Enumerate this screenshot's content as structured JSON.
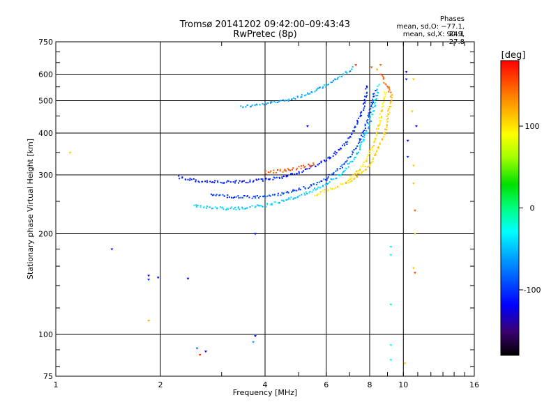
{
  "chart_data": {
    "type": "scatter",
    "title": "Tromsø 20141202 09:42:00–09:43:43",
    "subtitle": "RwPretec (8p)",
    "xlabel": "Frequency [MHz]",
    "ylabel": "Stationary phase Virtual Height [km]",
    "xscale": "log",
    "yscale": "log",
    "xlim": [
      1,
      16
    ],
    "ylim": [
      75,
      750
    ],
    "x_ticks": [
      "1",
      "2",
      "4",
      "6",
      "8",
      "10",
      "16"
    ],
    "x_tick_values": [
      1,
      2,
      4,
      6,
      8,
      10,
      16
    ],
    "y_ticks": [
      "75",
      "100",
      "200",
      "300",
      "400",
      "500",
      "600",
      "750"
    ],
    "y_tick_values": [
      75,
      100,
      200,
      300,
      400,
      500,
      600,
      750
    ],
    "grid": true,
    "color_legend": {
      "label": "[deg]",
      "tick_labels": [
        "100",
        "0",
        "-100"
      ],
      "tick_values": [
        100,
        0,
        -100
      ],
      "range": [
        -180,
        180
      ]
    },
    "stats": {
      "heading": "Phases",
      "line_o": "mean, sd,O: −77.1, 24.1",
      "line_x": "mean, sd,X:  90.9, 27.8"
    },
    "traces": [
      {
        "x": [
          3.4,
          3.8,
          4.3,
          4.9,
          5.5,
          6.0,
          6.5,
          6.9,
          7.2
        ],
        "y": [
          480,
          485,
          495,
          510,
          530,
          555,
          585,
          610,
          630
        ],
        "phase": -60
      },
      {
        "x": [
          2.25,
          2.6,
          3.0,
          3.5,
          4.0,
          4.5,
          5.0,
          5.6,
          6.2,
          6.8,
          7.3,
          7.7,
          7.9
        ],
        "y": [
          295,
          287,
          285,
          286,
          290,
          296,
          305,
          320,
          340,
          370,
          420,
          480,
          560
        ],
        "phase": -110
      },
      {
        "x": [
          2.8,
          3.2,
          3.7,
          4.2,
          4.8,
          5.4,
          6.0,
          6.6,
          7.1,
          7.6,
          8.0,
          8.3
        ],
        "y": [
          262,
          258,
          257,
          260,
          268,
          278,
          292,
          315,
          345,
          390,
          460,
          540
        ],
        "phase": -95
      },
      {
        "x": [
          2.5,
          2.9,
          3.4,
          4.0,
          4.6,
          5.3,
          6.0,
          6.7,
          7.3,
          7.8,
          8.2,
          8.5
        ],
        "y": [
          242,
          238,
          238,
          243,
          252,
          265,
          282,
          305,
          340,
          395,
          470,
          560
        ],
        "phase": -45
      },
      {
        "x": [
          5.6,
          6.2,
          6.8,
          7.3,
          7.8,
          8.2,
          8.5,
          8.7,
          8.9
        ],
        "y": [
          262,
          272,
          285,
          302,
          328,
          370,
          420,
          480,
          540
        ],
        "phase": 100
      },
      {
        "x": [
          6.8,
          7.4,
          8.0,
          8.5,
          8.9,
          9.1,
          9.3
        ],
        "y": [
          282,
          298,
          322,
          360,
          410,
          470,
          530
        ],
        "phase": 110
      },
      {
        "x": [
          4.0,
          4.4,
          4.8,
          5.2,
          5.6
        ],
        "y": [
          305,
          308,
          312,
          318,
          325
        ],
        "phase": 150
      },
      {
        "x": [
          8.6,
          8.8,
          9.0,
          9.2
        ],
        "y": [
          600,
          575,
          550,
          520
        ],
        "phase": 150
      }
    ],
    "points": [
      {
        "x": 1.1,
        "y": 350,
        "phase": 110
      },
      {
        "x": 1.45,
        "y": 180,
        "phase": -110
      },
      {
        "x": 1.85,
        "y": 150,
        "phase": -120
      },
      {
        "x": 1.85,
        "y": 146,
        "phase": -110
      },
      {
        "x": 1.85,
        "y": 110,
        "phase": 120
      },
      {
        "x": 1.97,
        "y": 148,
        "phase": -120
      },
      {
        "x": 2.4,
        "y": 147,
        "phase": -120
      },
      {
        "x": 2.55,
        "y": 91,
        "phase": -80
      },
      {
        "x": 2.6,
        "y": 87,
        "phase": 170
      },
      {
        "x": 2.7,
        "y": 89,
        "phase": -120
      },
      {
        "x": 3.75,
        "y": 200,
        "phase": -120
      },
      {
        "x": 3.75,
        "y": 99,
        "phase": -120
      },
      {
        "x": 3.7,
        "y": 95,
        "phase": -60
      },
      {
        "x": 5.3,
        "y": 420,
        "phase": -120
      },
      {
        "x": 10.2,
        "y": 610,
        "phase": -120
      },
      {
        "x": 10.2,
        "y": 580,
        "phase": -110
      },
      {
        "x": 10.3,
        "y": 380,
        "phase": -120
      },
      {
        "x": 10.3,
        "y": 340,
        "phase": -100
      },
      {
        "x": 9.2,
        "y": 183,
        "phase": -20
      },
      {
        "x": 9.2,
        "y": 173,
        "phase": -30
      },
      {
        "x": 9.2,
        "y": 123,
        "phase": -10
      },
      {
        "x": 9.2,
        "y": 93,
        "phase": -30
      },
      {
        "x": 9.2,
        "y": 84,
        "phase": -30
      },
      {
        "x": 10.7,
        "y": 580,
        "phase": 110
      },
      {
        "x": 10.6,
        "y": 465,
        "phase": 110
      },
      {
        "x": 10.9,
        "y": 420,
        "phase": -130
      },
      {
        "x": 10.7,
        "y": 320,
        "phase": 110
      },
      {
        "x": 10.7,
        "y": 283,
        "phase": 110
      },
      {
        "x": 10.8,
        "y": 235,
        "phase": 150
      },
      {
        "x": 10.8,
        "y": 200,
        "phase": 110
      },
      {
        "x": 10.7,
        "y": 158,
        "phase": 110
      },
      {
        "x": 10.8,
        "y": 153,
        "phase": 160
      },
      {
        "x": 10.1,
        "y": 82,
        "phase": 110
      },
      {
        "x": 8.1,
        "y": 630,
        "phase": 150
      },
      {
        "x": 8.4,
        "y": 620,
        "phase": 120
      },
      {
        "x": 8.6,
        "y": 640,
        "phase": 140
      },
      {
        "x": 7.3,
        "y": 640,
        "phase": 160
      }
    ]
  }
}
